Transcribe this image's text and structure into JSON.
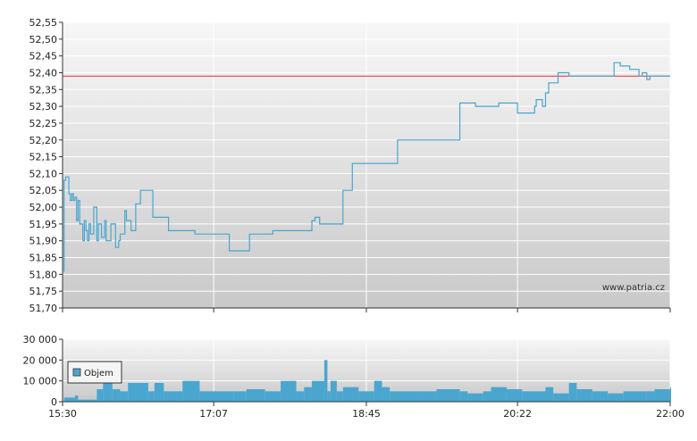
{
  "chart_data": [
    {
      "type": "line",
      "watermark": "www.patria.cz",
      "ylim": [
        51.7,
        52.55
      ],
      "y_ticks": [
        "52,55",
        "52,50",
        "52,45",
        "52,40",
        "52,35",
        "52,30",
        "52,25",
        "52,20",
        "52,15",
        "52,10",
        "52,05",
        "52,00",
        "51,95",
        "51,90",
        "51,85",
        "51,80",
        "51,75",
        "51,70"
      ],
      "reference_line": {
        "value": 52.39,
        "color": "#e03030"
      },
      "colors": {
        "line": "#4aa6cf",
        "plot_top": "#f7f7f7",
        "plot_bottom": "#c9c9c9",
        "grid": "#ffffff"
      },
      "series": [
        {
          "x": [
            "15:30",
            "15:31",
            "15:32",
            "15:33",
            "15:34",
            "15:35",
            "15:36",
            "15:37",
            "15:38",
            "15:39",
            "15:40",
            "15:41",
            "15:42",
            "15:43",
            "15:44",
            "15:45",
            "15:46",
            "15:47",
            "15:48",
            "15:50",
            "15:52",
            "15:53",
            "15:55",
            "15:57",
            "15:58",
            "16:01",
            "16:04",
            "16:06",
            "16:07",
            "16:08",
            "16:10",
            "16:11",
            "16:12",
            "16:14",
            "16:17",
            "16:20",
            "16:22",
            "16:28",
            "16:31",
            "16:38",
            "16:55",
            "17:07",
            "17:17",
            "17:30",
            "17:45",
            "18:10",
            "18:12",
            "18:15",
            "18:25",
            "18:30",
            "18:34",
            "18:36",
            "18:45",
            "19:05",
            "19:25",
            "19:45",
            "19:55",
            "20:10",
            "20:22",
            "20:33",
            "20:34",
            "20:36",
            "20:38",
            "20:40",
            "20:42",
            "20:44",
            "20:48",
            "20:55",
            "21:12",
            "21:24",
            "21:28",
            "21:34",
            "21:40",
            "21:42",
            "21:45",
            "21:47",
            "21:49",
            "21:52",
            "22:00"
          ],
          "y": [
            51.81,
            52.08,
            52.09,
            52.09,
            52.04,
            52.02,
            52.04,
            52.02,
            52.03,
            51.96,
            52.02,
            51.95,
            51.95,
            51.9,
            51.96,
            51.93,
            51.9,
            51.95,
            51.92,
            52.0,
            51.9,
            51.95,
            51.91,
            51.96,
            51.9,
            51.95,
            51.88,
            51.9,
            51.92,
            51.92,
            51.99,
            51.96,
            51.96,
            51.93,
            52.01,
            52.05,
            52.05,
            51.97,
            51.97,
            51.93,
            51.92,
            51.92,
            51.87,
            51.92,
            51.93,
            51.96,
            51.97,
            51.95,
            51.95,
            52.05,
            52.05,
            52.13,
            52.13,
            52.2,
            52.2,
            52.31,
            52.3,
            52.31,
            52.28,
            52.3,
            52.32,
            52.32,
            52.3,
            52.34,
            52.37,
            52.37,
            52.4,
            52.39,
            52.39,
            52.43,
            52.42,
            52.41,
            52.39,
            52.4,
            52.38,
            52.39,
            52.39,
            52.39,
            52.39
          ]
        }
      ]
    },
    {
      "type": "bar",
      "ylim": [
        0,
        30000
      ],
      "y_ticks": [
        "30 000",
        "20 000",
        "10 000",
        "0"
      ],
      "x_ticks": [
        "15:30",
        "17:07",
        "18:45",
        "20:22",
        "22:00"
      ],
      "legend": {
        "label": "Objem",
        "position": "top-left"
      },
      "colors": {
        "bars": "#4aa6cf",
        "plot_top": "#f7f7f7",
        "plot_bottom": "#c9c9c9"
      },
      "series": [
        {
          "name": "Objem",
          "x": [
            "15:31",
            "15:38",
            "15:40",
            "15:52",
            "15:56",
            "16:02",
            "16:07",
            "16:12",
            "16:25",
            "16:29",
            "16:35",
            "16:47",
            "16:58",
            "17:20",
            "17:28",
            "17:40",
            "17:50",
            "18:00",
            "18:05",
            "18:10",
            "18:18",
            "18:20",
            "18:22",
            "18:26",
            "18:30",
            "18:40",
            "18:50",
            "18:55",
            "19:00",
            "19:20",
            "19:30",
            "19:45",
            "19:50",
            "20:00",
            "20:05",
            "20:15",
            "20:25",
            "20:40",
            "20:45",
            "20:55",
            "21:00",
            "21:10",
            "21:20",
            "21:30",
            "21:45",
            "21:50",
            "22:00"
          ],
          "values": [
            2000,
            3000,
            1000,
            6000,
            10000,
            6000,
            5000,
            9000,
            5000,
            9000,
            5000,
            10000,
            5000,
            5000,
            6000,
            5000,
            10000,
            5000,
            7000,
            10000,
            20000,
            5000,
            10000,
            5000,
            7000,
            5000,
            10000,
            7000,
            5000,
            5000,
            6000,
            5000,
            4000,
            5000,
            7000,
            6000,
            5000,
            7000,
            4000,
            9000,
            6000,
            5000,
            4000,
            5000,
            5000,
            6000,
            7000
          ]
        }
      ]
    }
  ]
}
